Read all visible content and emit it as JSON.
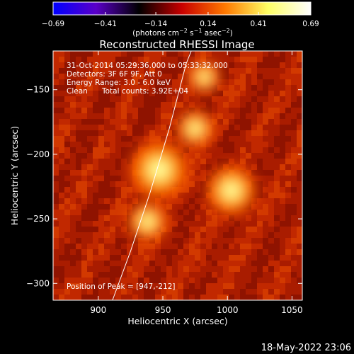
{
  "chart_data": {
    "type": "heatmap",
    "title": "Reconstructed RHESSI Image",
    "xlabel": "Heliocentric X (arcsec)",
    "ylabel": "Heliocentric Y (arcsec)",
    "xlim": [
      865,
      1058
    ],
    "ylim": [
      -313,
      -120
    ],
    "xticks": [
      900,
      950,
      1000,
      1050
    ],
    "yticks": [
      -300,
      -250,
      -200,
      -150
    ],
    "colorbar": {
      "min": -0.69,
      "max": 0.69,
      "tick_values": [
        -0.69,
        -0.41,
        -0.14,
        0.14,
        0.41,
        0.69
      ],
      "tick_labels": [
        "−0.69",
        "−0.41",
        "−0.14",
        "0.14",
        "0.41",
        "0.69"
      ],
      "unit_label": "(photons cm",
      "unit_exp1": "−2",
      "unit_mid": " s",
      "unit_exp2": "−1",
      "unit_mid2": " asec",
      "unit_exp3": "−2",
      "unit_end": ")",
      "colors": [
        "#0000ff",
        "#5a00c8",
        "#000000",
        "#c80000",
        "#ff7800",
        "#ffff64",
        "#ffffff"
      ]
    },
    "annotations": {
      "time_range": "31-Oct-2014 05:29:36.000 to 05:33:32.000",
      "detectors": "Detectors: 3F 6F 9F, Att 0",
      "energy": "Energy Range: 3.0 - 6.0 keV",
      "clean": "Clean",
      "counts": "Total counts: 3.92E+04",
      "peak": "Position of Peak = [947,-212]"
    },
    "sources": [
      {
        "x": 947,
        "y": -212,
        "intensity": 1.0
      },
      {
        "x": 1003,
        "y": -228,
        "intensity": 0.82
      },
      {
        "x": 938,
        "y": -252,
        "intensity": 0.6
      },
      {
        "x": 975,
        "y": -180,
        "intensity": 0.55
      },
      {
        "x": 982,
        "y": -140,
        "intensity": 0.45
      }
    ],
    "peak_position": [
      947,
      -212
    ],
    "limb_curve": [
      [
        911,
        -313
      ],
      [
        925,
        -275
      ],
      [
        940,
        -230
      ],
      [
        955,
        -180
      ],
      [
        968,
        -130
      ],
      [
        972,
        -120
      ]
    ],
    "footer_date": "18-May-2022 23:06"
  }
}
